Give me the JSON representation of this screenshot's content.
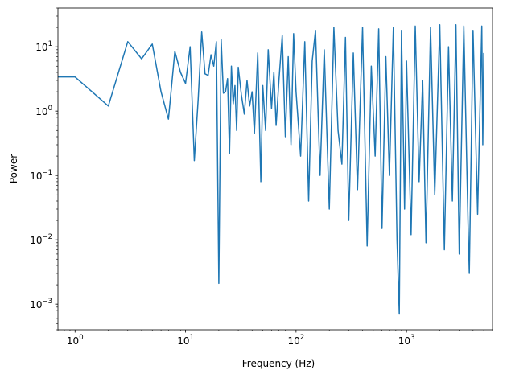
{
  "chart_data": {
    "type": "line",
    "title": "",
    "xlabel": "Frequency (Hz)",
    "ylabel": "Power",
    "xscale": "log",
    "yscale": "log",
    "xlim": [
      0.7,
      6000
    ],
    "ylim": [
      0.0004,
      40
    ],
    "grid": false,
    "legend": "none",
    "x_major_ticks": [
      1,
      10,
      100,
      1000
    ],
    "y_major_ticks": [
      0.001,
      0.01,
      0.1,
      1,
      10
    ],
    "colors": {
      "series": "#1f77b4",
      "axes": "#000000",
      "background": "#ffffff"
    },
    "series": [
      {
        "values_described": "Power spectrum of a noisy signal; values fluctuate strongly with increasing density toward high frequencies",
        "x": [
          0.5,
          1,
          2,
          3,
          4,
          5,
          6,
          7,
          8,
          9,
          10,
          11,
          12,
          13,
          14,
          15,
          16,
          17,
          18,
          19,
          20,
          21,
          22,
          23,
          24,
          25,
          26,
          27,
          28,
          29,
          30,
          32,
          34,
          36,
          38,
          40,
          42,
          45,
          48,
          50,
          53,
          56,
          60,
          63,
          66,
          70,
          75,
          80,
          85,
          90,
          95,
          100,
          110,
          120,
          130,
          140,
          150,
          165,
          180,
          200,
          220,
          240,
          260,
          280,
          300,
          330,
          360,
          400,
          440,
          480,
          520,
          560,
          600,
          650,
          700,
          760,
          820,
          860,
          900,
          960,
          1000,
          1100,
          1200,
          1300,
          1400,
          1500,
          1650,
          1800,
          2000,
          2200,
          2400,
          2600,
          2800,
          3000,
          3300,
          3600,
          3700,
          4000,
          4400,
          4800,
          4900,
          5000
        ],
        "y": [
          3.4,
          3.4,
          1.2,
          12,
          6.5,
          11,
          2.0,
          0.75,
          8.5,
          4.0,
          2.7,
          10,
          0.17,
          1.5,
          17,
          3.8,
          3.6,
          7.5,
          5.0,
          12,
          0.0021,
          13,
          1.9,
          2.0,
          3.2,
          0.22,
          5.0,
          1.3,
          2.5,
          0.5,
          4.8,
          1.8,
          0.9,
          3.0,
          1.2,
          2.0,
          0.45,
          8.0,
          0.08,
          2.5,
          0.5,
          9.0,
          1.1,
          4.0,
          0.6,
          3.0,
          15,
          0.4,
          7.0,
          0.3,
          16,
          2.0,
          0.2,
          12,
          0.04,
          6.0,
          18,
          0.1,
          9.0,
          0.03,
          20,
          0.5,
          0.15,
          14,
          0.02,
          8.0,
          0.06,
          20,
          0.008,
          5.0,
          0.2,
          19,
          0.015,
          7.0,
          0.1,
          20,
          0.01,
          0.0007,
          18,
          0.03,
          6.0,
          0.012,
          21,
          0.08,
          3.0,
          0.009,
          20,
          0.05,
          22,
          0.007,
          10,
          0.04,
          22,
          0.006,
          21,
          0.02,
          0.003,
          18,
          0.025,
          21,
          0.3,
          8.0
        ]
      }
    ]
  },
  "axes_tick_labels": {
    "x": [
      {
        "base": "10",
        "exp": "0"
      },
      {
        "base": "10",
        "exp": "1"
      },
      {
        "base": "10",
        "exp": "2"
      },
      {
        "base": "10",
        "exp": "3"
      }
    ],
    "y": [
      {
        "base": "10",
        "exp": "−3"
      },
      {
        "base": "10",
        "exp": "−2"
      },
      {
        "base": "10",
        "exp": "−1"
      },
      {
        "base": "10",
        "exp": "0"
      },
      {
        "base": "10",
        "exp": "1"
      }
    ]
  }
}
